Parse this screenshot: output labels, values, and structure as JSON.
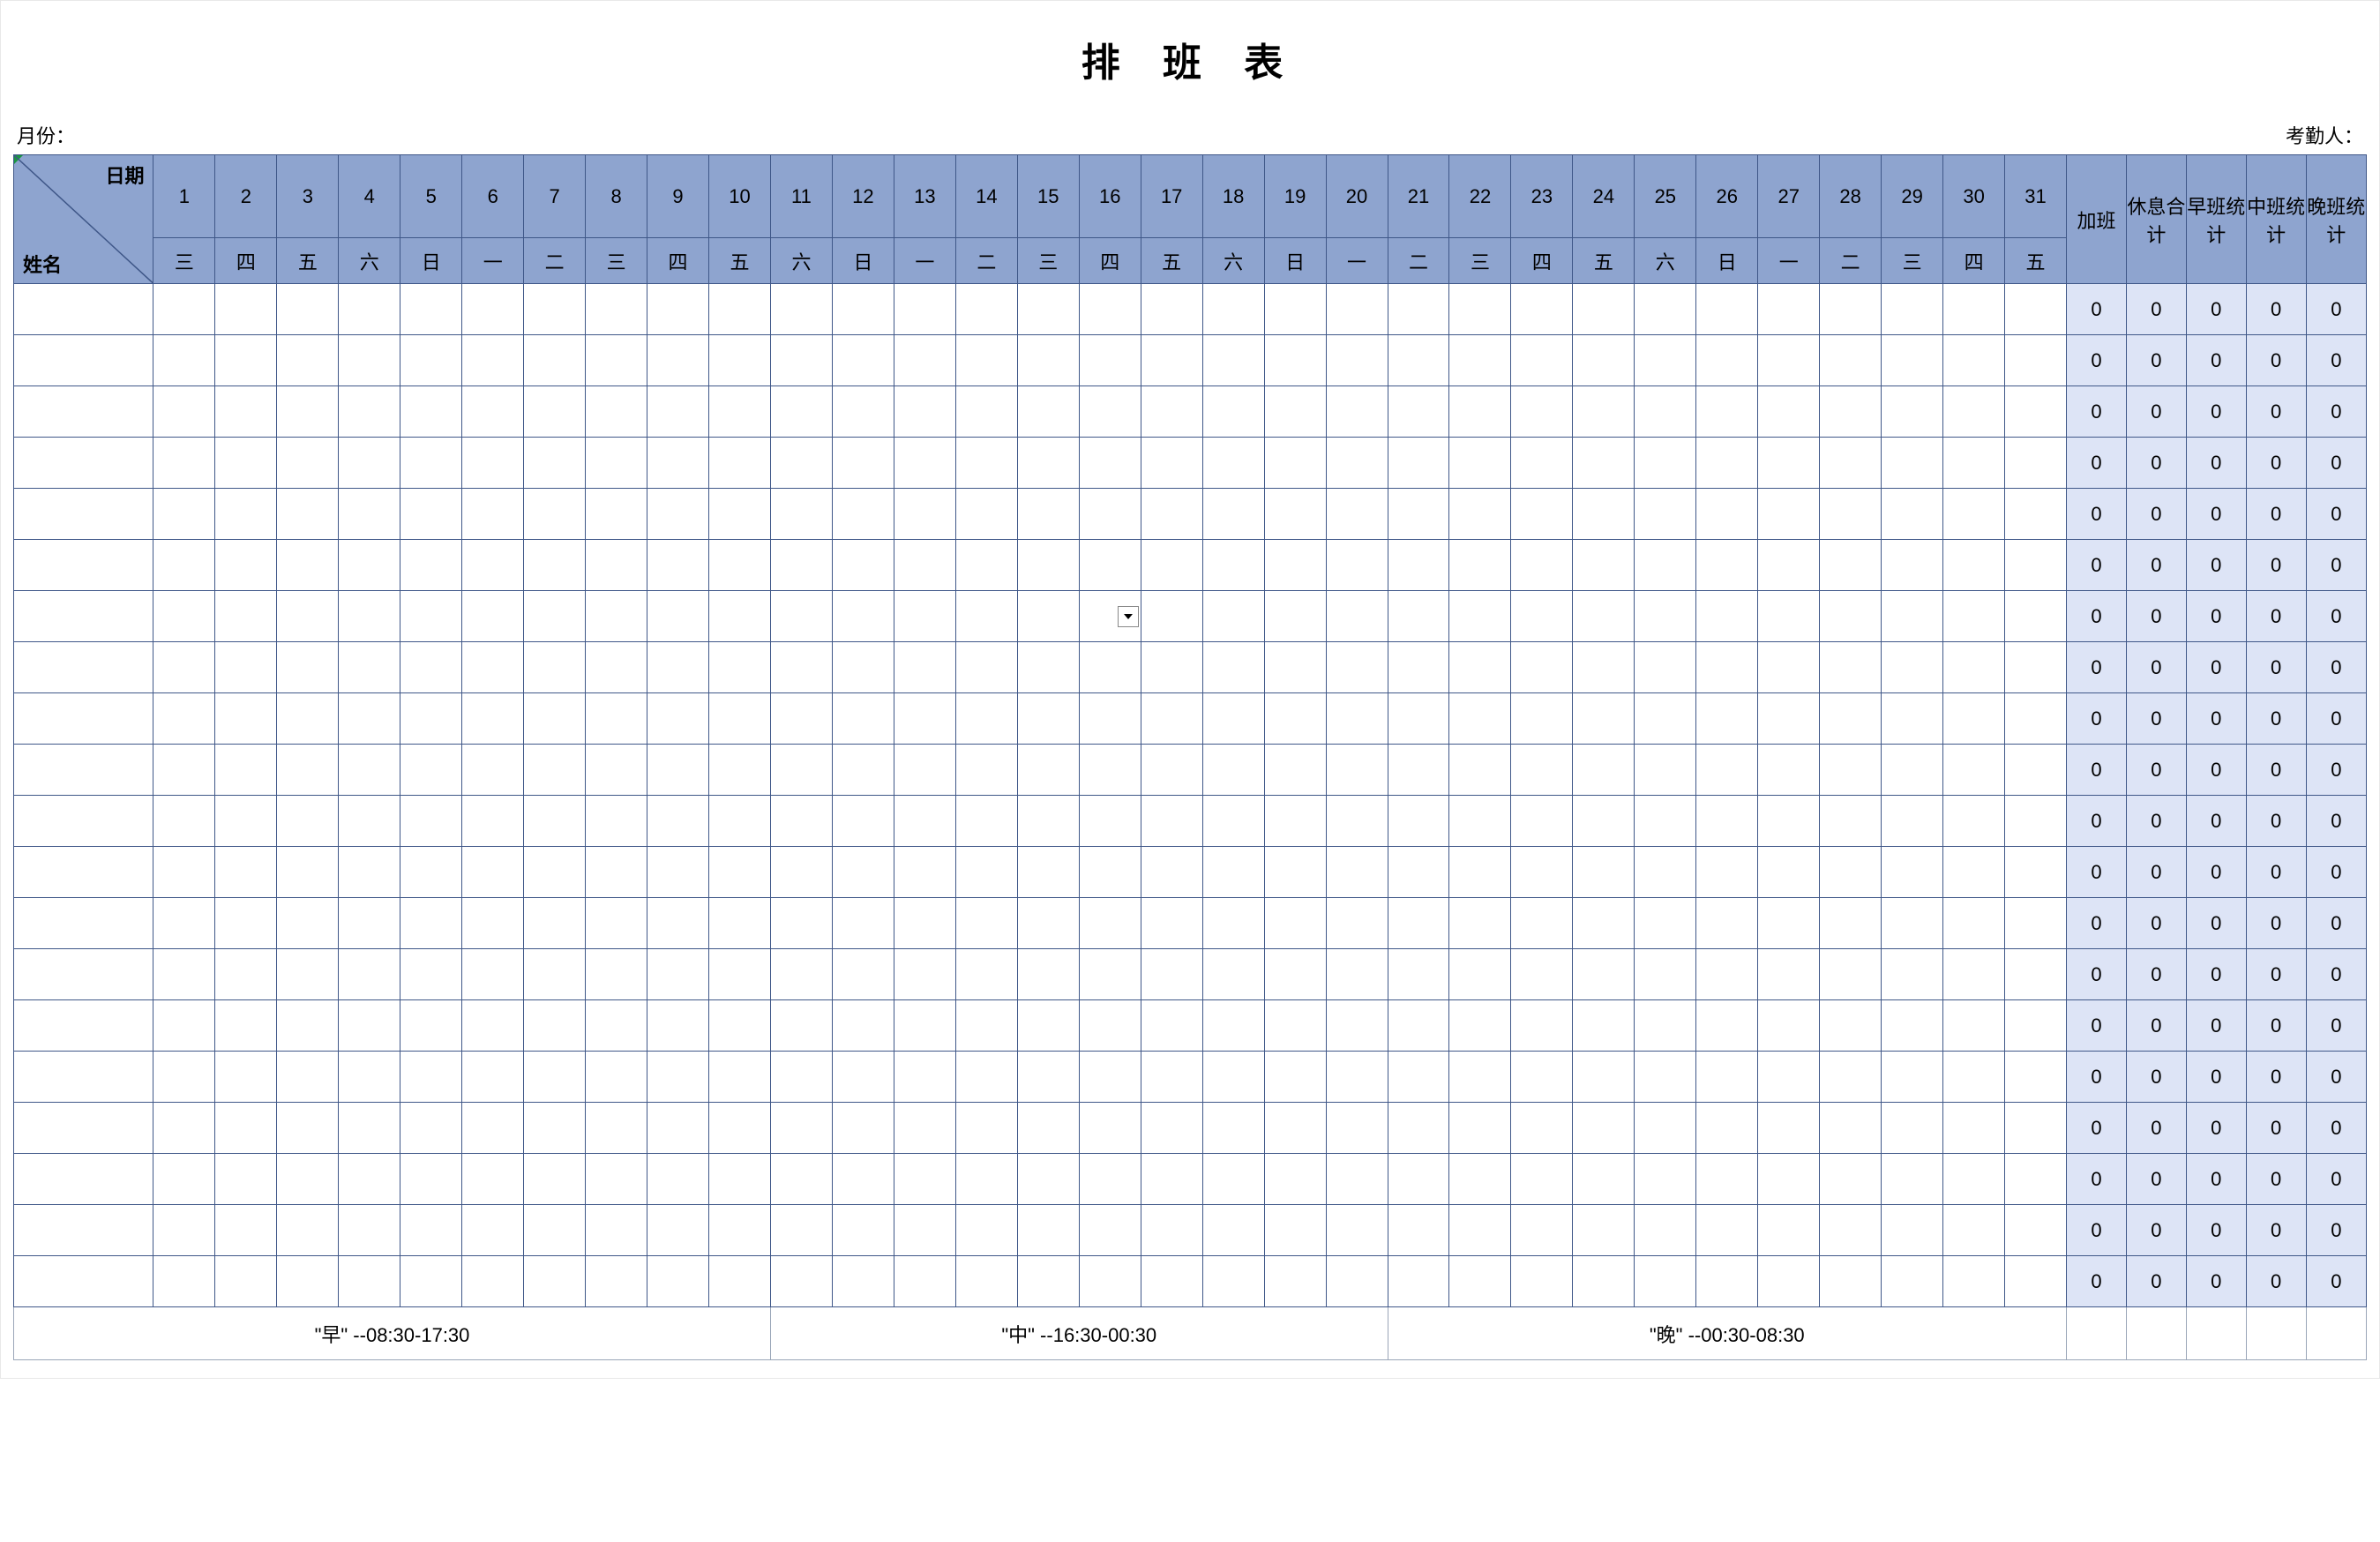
{
  "title": "排 班 表",
  "meta": {
    "month_label": "月份：",
    "attendance_label": "考勤人："
  },
  "header": {
    "diag_top": "日期",
    "diag_bottom": "姓名",
    "days": [
      "1",
      "2",
      "3",
      "4",
      "5",
      "6",
      "7",
      "8",
      "9",
      "10",
      "11",
      "12",
      "13",
      "14",
      "15",
      "16",
      "17",
      "18",
      "19",
      "20",
      "21",
      "22",
      "23",
      "24",
      "25",
      "26",
      "27",
      "28",
      "29",
      "30",
      "31"
    ],
    "weekdays": [
      "三",
      "四",
      "五",
      "六",
      "日",
      "一",
      "二",
      "三",
      "四",
      "五",
      "六",
      "日",
      "一",
      "二",
      "三",
      "四",
      "五",
      "六",
      "日",
      "一",
      "二",
      "三",
      "四",
      "五",
      "六",
      "日",
      "一",
      "二",
      "三",
      "四",
      "五"
    ],
    "summary_labels": [
      "加班",
      "休息合计",
      "早班统计",
      "中班统计",
      "晚班统计"
    ]
  },
  "body": {
    "row_count": 20,
    "summary_value": "0",
    "dropdown_cell": {
      "row": 6,
      "day_index": 15
    }
  },
  "footer": {
    "legend1": "\"早\"  --08:30-17:30",
    "legend2": "\"中\"  --16:30-00:30",
    "legend3": "\"晚\"  --00:30-08:30"
  },
  "colors": {
    "header_bg": "#8ea4cf",
    "summary_bg": "#dde4f6",
    "border": "#3f5788",
    "marker": "#1a9641"
  }
}
